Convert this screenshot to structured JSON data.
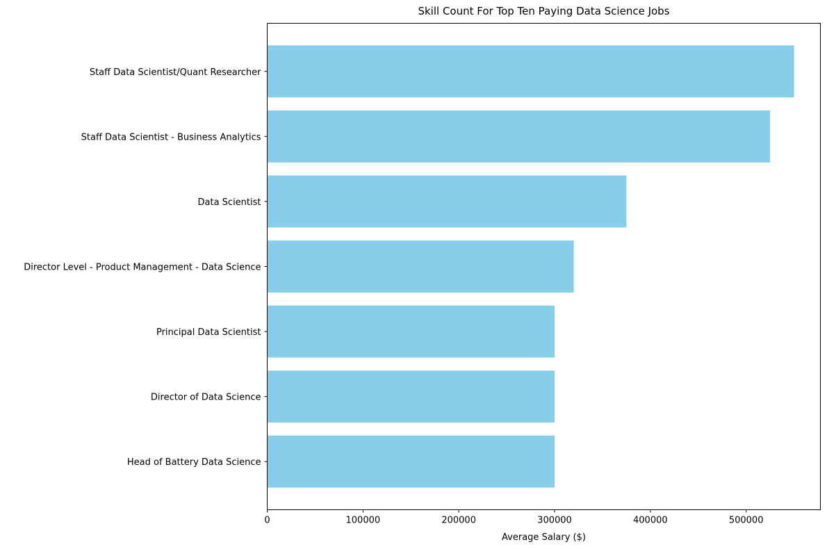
{
  "chart_data": {
    "type": "bar",
    "orientation": "horizontal",
    "title": "Skill Count For Top Ten Paying Data Science Jobs",
    "xlabel": "Average Salary ($)",
    "ylabel": "",
    "xlim": [
      0,
      577500
    ],
    "xticks": [
      0,
      100000,
      200000,
      300000,
      400000,
      500000
    ],
    "xtick_labels": [
      "0",
      "100000",
      "200000",
      "300000",
      "400000",
      "500000"
    ],
    "grid": false,
    "legend": "none",
    "bar_color": "#87CEEB",
    "categories": [
      "Staff Data Scientist/Quant Researcher",
      "Staff Data Scientist - Business Analytics",
      "Data Scientist",
      "Director Level - Product Management - Data Science",
      "Principal Data Scientist",
      "Director of Data Science",
      "Head of Battery Data Science"
    ],
    "values": [
      550000,
      525000,
      375000,
      320000,
      300000,
      300000,
      300000
    ]
  }
}
